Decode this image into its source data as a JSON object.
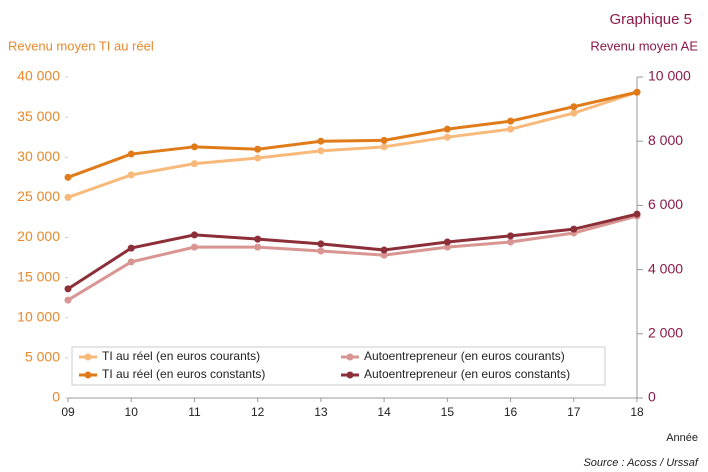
{
  "chart_data": {
    "type": "line",
    "label": "Graphique 5",
    "ylabel": "Revenu moyen TI au réel",
    "y2label": "Revenu moyen AE",
    "xlabel": "Année",
    "source": "Source : Acoss / Urssaf",
    "categories": [
      "09",
      "10",
      "11",
      "12",
      "13",
      "14",
      "15",
      "16",
      "17",
      "18"
    ],
    "series": [
      {
        "name": "TI au réel (en euros courants)",
        "color": "#f9b97a",
        "values": [
          25000,
          27800,
          29200,
          29900,
          30800,
          31300,
          32500,
          33500,
          35500,
          38100
        ]
      },
      {
        "name": "TI au réel (en euros constants)",
        "color": "#e07b1a",
        "values": [
          27500,
          30400,
          31300,
          31000,
          32000,
          32100,
          33500,
          34500,
          36300,
          38100
        ]
      },
      {
        "name": "Autoentrepreneur (en euros courants)",
        "color": "#d99591",
        "axis": "y2",
        "values": [
          3050,
          4240,
          4700,
          4700,
          4580,
          4450,
          4700,
          4860,
          5140,
          5670
        ]
      },
      {
        "name": "Autoentrepreneur (en euros constants)",
        "color": "#8c2f39",
        "axis": "y2",
        "values": [
          3400,
          4670,
          5080,
          4950,
          4800,
          4610,
          4860,
          5050,
          5260,
          5730
        ]
      }
    ],
    "ylim": [
      0,
      40000
    ],
    "yticks": [
      0,
      {
        "value": 5000,
        "label": "5 000"
      },
      {
        "value": 10000,
        "label": "10 000"
      },
      {
        "value": 15000,
        "label": "15 000"
      },
      {
        "value": 20000,
        "label": "20 000"
      },
      {
        "value": 25000,
        "label": "25 000"
      },
      {
        "value": 30000,
        "label": "30 000"
      },
      {
        "value": 35000,
        "label": "35 000"
      },
      {
        "value": 40000,
        "label": "40 000"
      }
    ],
    "y2lim": [
      0,
      10000
    ],
    "y2ticks": [
      0,
      {
        "value": 2000,
        "label": "2 000"
      },
      {
        "value": 4000,
        "label": "4 000"
      },
      {
        "value": 6000,
        "label": "6 000"
      },
      {
        "value": 8000,
        "label": "8 000"
      },
      {
        "value": 10000,
        "label": "10 000"
      }
    ],
    "legend": "bottom"
  }
}
